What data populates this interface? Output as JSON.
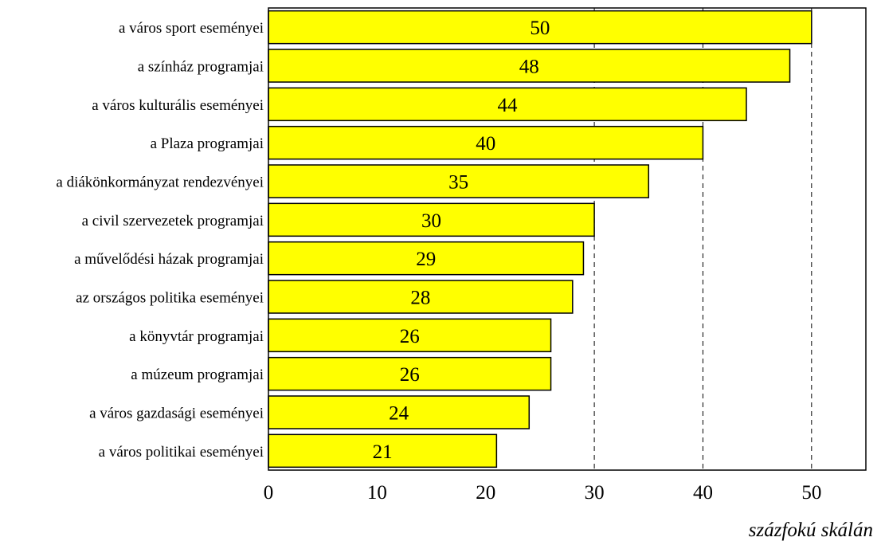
{
  "chart_data": {
    "type": "bar",
    "orientation": "horizontal",
    "title": "",
    "xlabel": "százfokú skálán",
    "ylabel": "",
    "categories": [
      "a város sport eseményei",
      "a színház programjai",
      "a város kulturális eseményei",
      "a Plaza programjai",
      "a diákönkormányzat rendezvényei",
      "a civil szervezetek programjai",
      "a művelődési házak programjai",
      "az országos politika eseményei",
      "a könyvtár programjai",
      "a múzeum programjai",
      "a város gazdasági eseményei",
      "a város politikai eseményei"
    ],
    "values": [
      50,
      48,
      44,
      40,
      35,
      30,
      29,
      28,
      26,
      26,
      24,
      21
    ],
    "xlim": [
      0,
      55
    ],
    "xticks": [
      0,
      10,
      20,
      30,
      40,
      50
    ],
    "xticks_labels": [
      "0",
      "10",
      "20",
      "30",
      "40",
      "50"
    ],
    "gridlines_x": [
      30,
      40,
      50
    ],
    "grid": "vertical dashed at 30, 40, 50",
    "legend": "none",
    "colors": {
      "bar_fill": "#ffff00",
      "bar_stroke": "#000000",
      "grid": "#000000"
    }
  }
}
